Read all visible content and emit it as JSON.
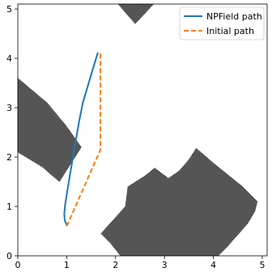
{
  "chart_data": {
    "type": "line",
    "title": "",
    "xlabel": "",
    "ylabel": "",
    "xlim": [
      0,
      5.1
    ],
    "ylim": [
      0,
      5.1
    ],
    "x_ticks": [
      0,
      1,
      2,
      3,
      4,
      5
    ],
    "y_ticks": [
      0,
      1,
      2,
      3,
      4,
      5
    ],
    "grid": false,
    "legend_position": "top-right",
    "series": [
      {
        "name": "NPField path",
        "color": "#1f77b4",
        "dash": "solid",
        "points": [
          [
            1.0,
            0.62
          ],
          [
            0.96,
            0.72
          ],
          [
            0.95,
            0.85
          ],
          [
            0.97,
            1.05
          ],
          [
            1.01,
            1.3
          ],
          [
            1.06,
            1.6
          ],
          [
            1.12,
            1.95
          ],
          [
            1.18,
            2.3
          ],
          [
            1.25,
            2.7
          ],
          [
            1.33,
            3.1
          ],
          [
            1.45,
            3.5
          ],
          [
            1.57,
            3.9
          ],
          [
            1.64,
            4.12
          ]
        ]
      },
      {
        "name": "Initial path",
        "color": "#ff7f0e",
        "dash": "dashed",
        "points": [
          [
            1.0,
            0.6
          ],
          [
            1.69,
            2.15
          ],
          [
            1.69,
            4.12
          ]
        ]
      }
    ],
    "obstacles": [
      {
        "name": "obstacle-left",
        "color": "#555555",
        "polygon": [
          [
            0.0,
            3.6
          ],
          [
            0.6,
            3.1
          ],
          [
            1.0,
            2.62
          ],
          [
            1.3,
            2.2
          ],
          [
            0.85,
            1.5
          ],
          [
            0.5,
            1.8
          ],
          [
            0.0,
            2.1
          ]
        ]
      },
      {
        "name": "obstacle-top",
        "color": "#555555",
        "polygon": [
          [
            2.05,
            5.1
          ],
          [
            2.78,
            5.1
          ],
          [
            2.4,
            4.7
          ]
        ]
      },
      {
        "name": "obstacle-bottom",
        "color": "#555555",
        "polygon": [
          [
            1.7,
            0.45
          ],
          [
            2.2,
            1.0
          ],
          [
            2.25,
            1.4
          ],
          [
            2.6,
            1.62
          ],
          [
            2.8,
            1.78
          ],
          [
            3.08,
            1.57
          ],
          [
            3.3,
            1.72
          ],
          [
            3.5,
            1.95
          ],
          [
            3.65,
            2.18
          ],
          [
            4.0,
            1.88
          ],
          [
            4.35,
            1.6
          ],
          [
            4.6,
            1.4
          ],
          [
            4.9,
            1.1
          ],
          [
            4.85,
            0.9
          ],
          [
            4.7,
            0.65
          ],
          [
            4.3,
            0.2
          ],
          [
            4.1,
            0.0
          ],
          [
            2.1,
            0.0
          ],
          [
            1.9,
            0.25
          ]
        ]
      }
    ]
  }
}
